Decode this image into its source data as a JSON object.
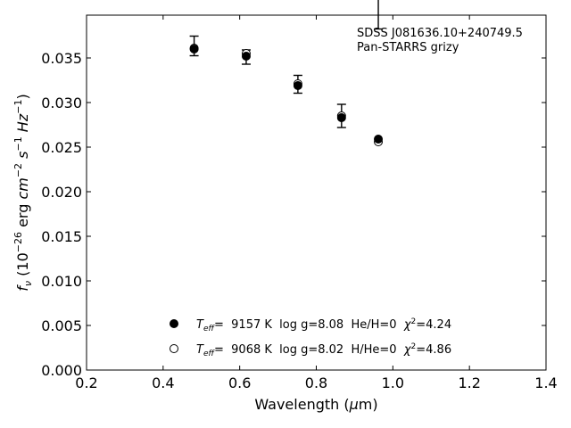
{
  "chart_data": {
    "type": "scatter",
    "xlabel": "Wavelength (μm)",
    "ylabel": "fν (10⁻²⁶ erg cm⁻² s⁻¹ Hz⁻¹)",
    "xlim": [
      0.2,
      1.4
    ],
    "ylim": [
      0.0,
      0.0398
    ],
    "xticks": [
      "0.2",
      "0.4",
      "0.6",
      "0.8",
      "1.0",
      "1.2",
      "1.4"
    ],
    "yticks": [
      "0.000",
      "0.005",
      "0.010",
      "0.015",
      "0.020",
      "0.025",
      "0.030",
      "0.035"
    ],
    "annotation": [
      "SDSS J081636.10+240749.5",
      "Pan-STARRS grizy"
    ],
    "observed": {
      "x": [
        0.481,
        0.617,
        0.752,
        0.866,
        0.962
      ],
      "y": [
        0.03635,
        0.0351,
        0.03205,
        0.0285,
        0.04025
      ],
      "yerr": [
        0.0011,
        0.0008,
        0.001,
        0.0013,
        0.002
      ]
    },
    "series": [
      {
        "name": "He/H=0",
        "legend": {
          "prefix": "=  9157 K  log g=8.08  He/H=0  ",
          "chi2": "=4.24"
        },
        "marker": "filled",
        "x": [
          0.481,
          0.617,
          0.752,
          0.866,
          0.962
        ],
        "y": [
          0.036,
          0.0352,
          0.0319,
          0.0283,
          0.0259
        ]
      },
      {
        "name": "H/He=0",
        "legend": {
          "prefix": "=  9068 K  log g=8.02  H/He=0  ",
          "chi2": "=4.86"
        },
        "marker": "open",
        "x": [
          0.481,
          0.617,
          0.752,
          0.866,
          0.962
        ],
        "y": [
          0.0361,
          0.0355,
          0.0321,
          0.0285,
          0.0256
        ]
      }
    ],
    "legend_location": "lower center",
    "grid": false
  }
}
